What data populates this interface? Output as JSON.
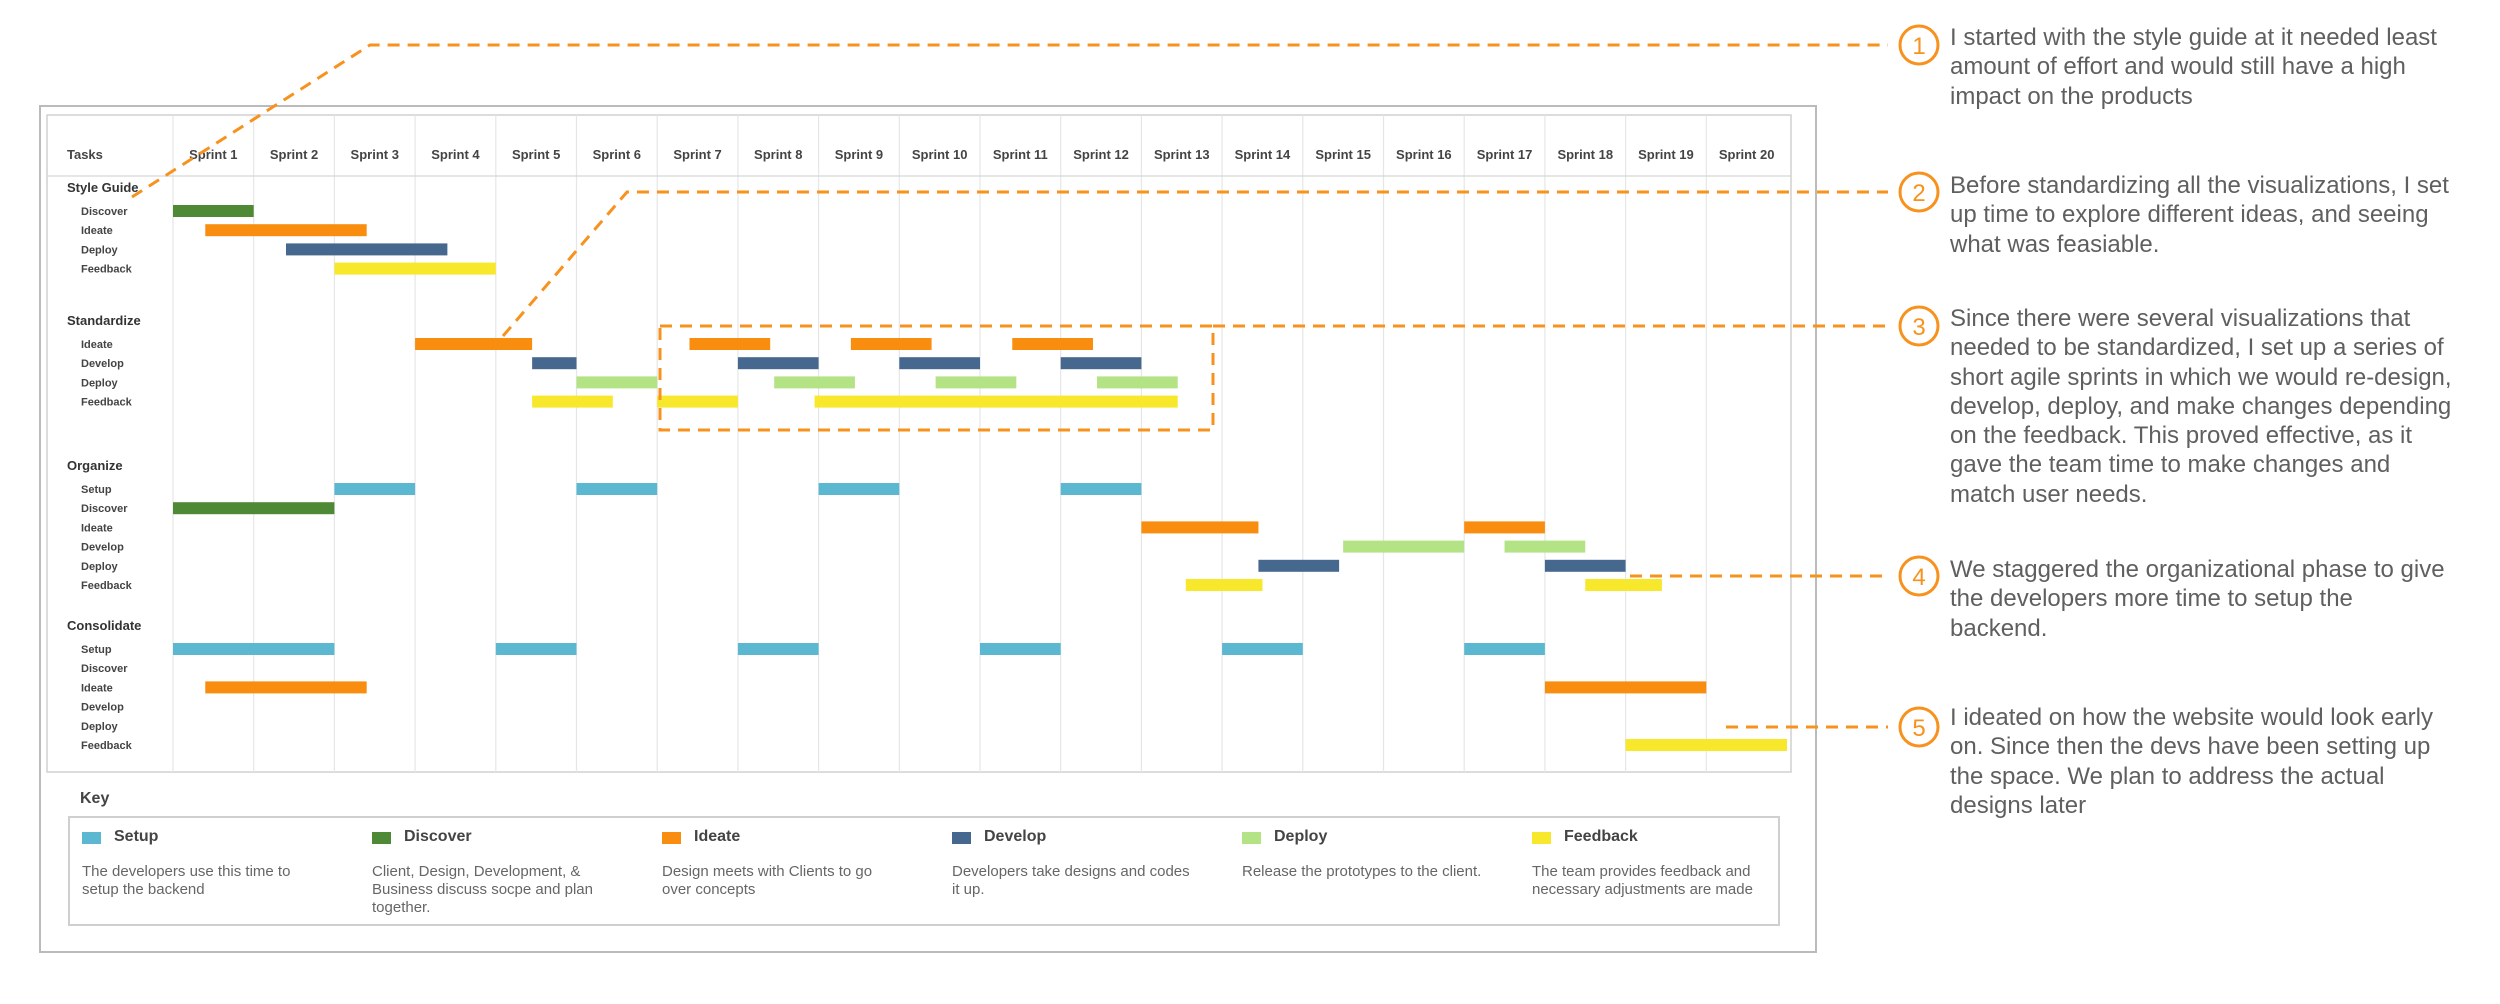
{
  "header": {
    "tasks_label": "Tasks"
  },
  "sprints": [
    "Sprint 1",
    "Sprint 2",
    "Sprint 3",
    "Sprint 4",
    "Sprint 5",
    "Sprint 6",
    "Sprint 7",
    "Sprint 8",
    "Sprint 9",
    "Sprint 10",
    "Sprint 11",
    "Sprint 12",
    "Sprint 13",
    "Sprint 14",
    "Sprint 15",
    "Sprint 16",
    "Sprint 17",
    "Sprint 18",
    "Sprint 19",
    "Sprint 20"
  ],
  "colors": {
    "setup": "#5cb8d0",
    "discover": "#4e8a35",
    "ideate": "#f98d0f",
    "develop": "#46688f",
    "deploy": "#b3e385",
    "feedback": "#f7e82b",
    "annotation": "#f7921e",
    "grid": "#e6e6e6",
    "frame": "#bbbbbb"
  },
  "groups": [
    {
      "name": "Style Guide",
      "rows": [
        {
          "label": "Discover",
          "type": "discover",
          "bars": [
            [
              1,
              2
            ]
          ]
        },
        {
          "label": "Ideate",
          "type": "ideate",
          "bars": [
            [
              1.4,
              3.4
            ]
          ]
        },
        {
          "label": "Deploy",
          "type": "develop",
          "bars": [
            [
              2.4,
              4.4
            ]
          ]
        },
        {
          "label": "Feedback",
          "type": "feedback",
          "bars": [
            [
              3,
              5
            ]
          ]
        }
      ]
    },
    {
      "name": "Standardize",
      "rows": [
        {
          "label": "Ideate",
          "type": "ideate",
          "bars": [
            [
              4,
              5.45
            ],
            [
              7.4,
              8.4
            ],
            [
              9.4,
              10.4
            ],
            [
              11.4,
              12.4
            ]
          ]
        },
        {
          "label": "Develop",
          "type": "develop",
          "bars": [
            [
              5.45,
              6
            ],
            [
              8,
              9
            ],
            [
              10,
              11
            ],
            [
              12,
              13
            ]
          ]
        },
        {
          "label": "Deploy",
          "type": "deploy",
          "bars": [
            [
              6,
              7
            ],
            [
              8.45,
              9.45
            ],
            [
              10.45,
              11.45
            ],
            [
              12.45,
              13.45
            ]
          ]
        },
        {
          "label": "Feedback",
          "type": "feedback",
          "bars": [
            [
              5.45,
              6.45
            ],
            [
              7,
              8
            ],
            [
              8.95,
              13.45
            ]
          ]
        }
      ]
    },
    {
      "name": "Organize",
      "rows": [
        {
          "label": "Setup",
          "type": "setup",
          "bars": [
            [
              3,
              4
            ],
            [
              6,
              7
            ],
            [
              9,
              10
            ],
            [
              12,
              13
            ]
          ]
        },
        {
          "label": "Discover",
          "type": "discover",
          "bars": [
            [
              1,
              3
            ]
          ]
        },
        {
          "label": "Ideate",
          "type": "ideate",
          "bars": [
            [
              13,
              14.45
            ],
            [
              17,
              18
            ]
          ]
        },
        {
          "label": "Develop",
          "type": "deploy",
          "bars": [
            [
              15.5,
              17
            ],
            [
              17.5,
              18.5
            ]
          ]
        },
        {
          "label": "Deploy",
          "type": "develop",
          "bars": [
            [
              14.45,
              15.45
            ],
            [
              18,
              19
            ]
          ]
        },
        {
          "label": "Feedback",
          "type": "feedback",
          "bars": [
            [
              13.55,
              14.5
            ],
            [
              18.5,
              19.45
            ]
          ]
        }
      ]
    },
    {
      "name": "Consolidate",
      "rows": [
        {
          "label": "Setup",
          "type": "setup",
          "bars": [
            [
              1,
              3
            ],
            [
              5,
              6
            ],
            [
              8,
              9
            ],
            [
              11,
              12
            ],
            [
              14,
              15
            ],
            [
              17,
              18
            ]
          ]
        },
        {
          "label": "Discover",
          "type": "discover",
          "bars": []
        },
        {
          "label": "Ideate",
          "type": "ideate",
          "bars": [
            [
              1.4,
              3.4
            ],
            [
              18,
              20
            ]
          ]
        },
        {
          "label": "Develop",
          "type": "develop",
          "bars": []
        },
        {
          "label": "Deploy",
          "type": "deploy",
          "bars": []
        },
        {
          "label": "Feedback",
          "type": "feedback",
          "bars": [
            [
              19,
              21
            ]
          ]
        }
      ]
    }
  ],
  "legend": {
    "title": "Key",
    "items": [
      {
        "key": "setup",
        "label": "Setup",
        "desc": "The developers use this time to setup the backend"
      },
      {
        "key": "discover",
        "label": "Discover",
        "desc": "Client, Design, Development, & Business discuss socpe and plan together."
      },
      {
        "key": "ideate",
        "label": "Ideate",
        "desc": "Design meets with Clients to go over concepts"
      },
      {
        "key": "develop",
        "label": "Develop",
        "desc": "Developers take designs and codes it up."
      },
      {
        "key": "deploy",
        "label": "Deploy",
        "desc": "Release the prototypes to the client."
      },
      {
        "key": "feedback",
        "label": "Feedback",
        "desc": "The team provides feedback and necessary adjustments are made"
      }
    ]
  },
  "annotations": [
    {
      "num": "1",
      "text": "I started with the style guide at it needed least amount of effort and would still have a high impact on the products"
    },
    {
      "num": "2",
      "text": "Before standardizing all the visualizations, I set up time to explore different ideas, and seeing what was feasiable."
    },
    {
      "num": "3",
      "text": "Since there were several visualizations that needed to be standardized, I set up a series of short agile sprints in which we would re-design, develop, deploy, and make changes depending on the feedback. This proved effective, as it gave the team time to make changes and match user needs."
    },
    {
      "num": "4",
      "text": "We staggered the organizational phase to give the developers more time to setup the backend."
    },
    {
      "num": "5",
      "text": "I ideated on how the website would look early on. Since then the devs have been setting up the space. We plan to address the actual designs later"
    }
  ]
}
